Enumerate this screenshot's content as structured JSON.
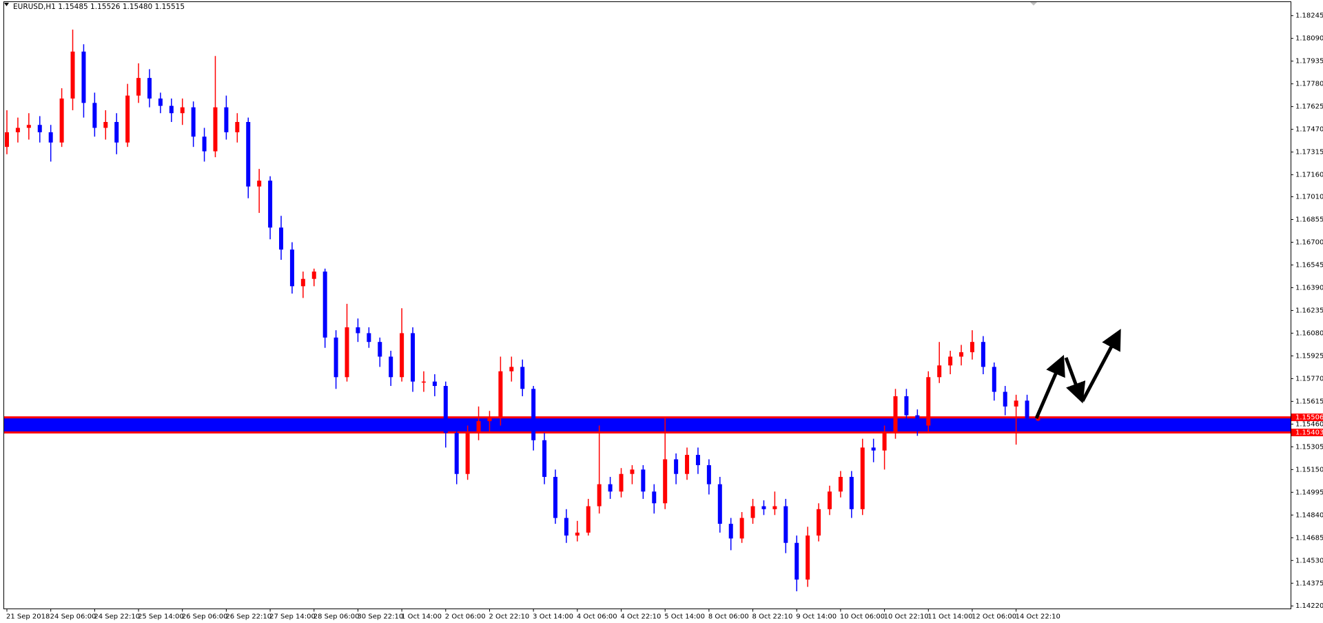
{
  "chart_data": {
    "type": "candlestick",
    "title": "EURUSD,H1  1.15485 1.15526 1.15480 1.15515",
    "categories": [
      "21 Sep 2018",
      null,
      null,
      null,
      "24 Sep 06:00",
      null,
      null,
      null,
      "24 Sep 22:10",
      null,
      null,
      null,
      "25 Sep 14:00",
      null,
      null,
      null,
      "26 Sep 06:00",
      null,
      null,
      null,
      "26 Sep 22:10",
      null,
      null,
      null,
      "27 Sep 14:00",
      null,
      null,
      null,
      "28 Sep 06:00",
      null,
      null,
      null,
      "30 Sep 22:10",
      null,
      null,
      null,
      "1 Oct 14:00",
      null,
      null,
      null,
      "2 Oct 06:00",
      null,
      null,
      null,
      "2 Oct 22:10",
      null,
      null,
      null,
      "3 Oct 14:00",
      null,
      null,
      null,
      "4 Oct 06:00",
      null,
      null,
      null,
      "4 Oct 22:10",
      null,
      null,
      null,
      "5 Oct 14:00",
      null,
      null,
      null,
      "8 Oct 06:00",
      null,
      null,
      null,
      "8 Oct 22:10",
      null,
      null,
      null,
      "9 Oct 14:00",
      null,
      null,
      null,
      "10 Oct 06:00",
      null,
      null,
      null,
      "10 Oct 22:10",
      null,
      null,
      null,
      "11 Oct 14:00",
      null,
      null,
      null,
      "12 Oct 06:00",
      null,
      null,
      null,
      "14 Oct 22:10",
      null,
      null
    ],
    "ohlc": [
      [
        1.1735,
        1.176,
        1.173,
        1.1745
      ],
      [
        1.1745,
        1.1755,
        1.1738,
        1.1748
      ],
      [
        1.1748,
        1.1758,
        1.174,
        1.175
      ],
      [
        1.175,
        1.1756,
        1.1738,
        1.1745
      ],
      [
        1.1745,
        1.175,
        1.1725,
        1.1738
      ],
      [
        1.1738,
        1.1775,
        1.1735,
        1.1768
      ],
      [
        1.1768,
        1.1815,
        1.176,
        1.18
      ],
      [
        1.18,
        1.1805,
        1.1755,
        1.1765
      ],
      [
        1.1765,
        1.1772,
        1.1742,
        1.1748
      ],
      [
        1.1748,
        1.176,
        1.174,
        1.1752
      ],
      [
        1.1752,
        1.1758,
        1.173,
        1.1738
      ],
      [
        1.1738,
        1.1778,
        1.1735,
        1.177
      ],
      [
        1.177,
        1.1792,
        1.1765,
        1.1782
      ],
      [
        1.1782,
        1.1788,
        1.1762,
        1.1768
      ],
      [
        1.1768,
        1.1772,
        1.1758,
        1.1763
      ],
      [
        1.1763,
        1.1768,
        1.1752,
        1.1758
      ],
      [
        1.1758,
        1.1768,
        1.175,
        1.1762
      ],
      [
        1.1762,
        1.1766,
        1.1735,
        1.1742
      ],
      [
        1.1742,
        1.1748,
        1.1725,
        1.1732
      ],
      [
        1.1732,
        1.1797,
        1.1728,
        1.1762
      ],
      [
        1.1762,
        1.177,
        1.174,
        1.1745
      ],
      [
        1.1745,
        1.1758,
        1.1738,
        1.1752
      ],
      [
        1.1752,
        1.1755,
        1.17,
        1.1708
      ],
      [
        1.1708,
        1.172,
        1.169,
        1.1712
      ],
      [
        1.1712,
        1.1715,
        1.1672,
        1.168
      ],
      [
        1.168,
        1.1688,
        1.1658,
        1.1665
      ],
      [
        1.1665,
        1.167,
        1.1635,
        1.164
      ],
      [
        1.164,
        1.165,
        1.1632,
        1.1645
      ],
      [
        1.1645,
        1.1652,
        1.164,
        1.165
      ],
      [
        1.165,
        1.1652,
        1.1598,
        1.1605
      ],
      [
        1.1605,
        1.161,
        1.157,
        1.1578
      ],
      [
        1.1578,
        1.1628,
        1.1575,
        1.1612
      ],
      [
        1.1612,
        1.1618,
        1.1602,
        1.1608
      ],
      [
        1.1608,
        1.1612,
        1.1598,
        1.1602
      ],
      [
        1.1602,
        1.1605,
        1.1585,
        1.1592
      ],
      [
        1.1592,
        1.1596,
        1.1572,
        1.1578
      ],
      [
        1.1578,
        1.1625,
        1.1575,
        1.1608
      ],
      [
        1.1608,
        1.1612,
        1.1568,
        1.1575
      ],
      [
        1.1575,
        1.1582,
        1.1568,
        1.1575
      ],
      [
        1.1575,
        1.158,
        1.1565,
        1.1572
      ],
      [
        1.1572,
        1.1575,
        1.153,
        1.154
      ],
      [
        1.154,
        1.1545,
        1.1505,
        1.1512
      ],
      [
        1.1512,
        1.1545,
        1.1508,
        1.154
      ],
      [
        1.154,
        1.1558,
        1.1535,
        1.1548
      ],
      [
        1.1548,
        1.1555,
        1.154,
        1.155
      ],
      [
        1.155,
        1.1592,
        1.1545,
        1.1582
      ],
      [
        1.1582,
        1.1592,
        1.1575,
        1.1585
      ],
      [
        1.1585,
        1.159,
        1.1565,
        1.157
      ],
      [
        1.157,
        1.1572,
        1.1528,
        1.1535
      ],
      [
        1.1535,
        1.154,
        1.1505,
        1.151
      ],
      [
        1.151,
        1.1515,
        1.1478,
        1.1482
      ],
      [
        1.1482,
        1.1488,
        1.1465,
        1.147
      ],
      [
        1.147,
        1.148,
        1.1466,
        1.1472
      ],
      [
        1.1472,
        1.1495,
        1.147,
        1.149
      ],
      [
        1.149,
        1.1545,
        1.1485,
        1.1505
      ],
      [
        1.1505,
        1.151,
        1.1495,
        1.15
      ],
      [
        1.15,
        1.1516,
        1.1496,
        1.1512
      ],
      [
        1.1512,
        1.1518,
        1.1505,
        1.1515
      ],
      [
        1.1515,
        1.1518,
        1.1495,
        1.15
      ],
      [
        1.15,
        1.1505,
        1.1485,
        1.1492
      ],
      [
        1.1492,
        1.155,
        1.1488,
        1.1522
      ],
      [
        1.1522,
        1.1526,
        1.1505,
        1.1512
      ],
      [
        1.1512,
        1.153,
        1.1508,
        1.1525
      ],
      [
        1.1525,
        1.153,
        1.1512,
        1.1518
      ],
      [
        1.1518,
        1.1522,
        1.1498,
        1.1505
      ],
      [
        1.1505,
        1.151,
        1.1472,
        1.1478
      ],
      [
        1.1478,
        1.1482,
        1.146,
        1.1468
      ],
      [
        1.1468,
        1.1486,
        1.1465,
        1.1482
      ],
      [
        1.1482,
        1.1495,
        1.1478,
        1.149
      ],
      [
        1.149,
        1.1494,
        1.1484,
        1.1488
      ],
      [
        1.1488,
        1.15,
        1.1484,
        1.149
      ],
      [
        1.149,
        1.1495,
        1.1458,
        1.1465
      ],
      [
        1.1465,
        1.147,
        1.1432,
        1.144
      ],
      [
        1.144,
        1.1476,
        1.1435,
        1.147
      ],
      [
        1.147,
        1.1492,
        1.1466,
        1.1488
      ],
      [
        1.1488,
        1.1504,
        1.1484,
        1.15
      ],
      [
        1.15,
        1.1514,
        1.1496,
        1.151
      ],
      [
        1.151,
        1.1514,
        1.1482,
        1.1488
      ],
      [
        1.1488,
        1.1536,
        1.1484,
        1.153
      ],
      [
        1.153,
        1.1536,
        1.152,
        1.1528
      ],
      [
        1.1528,
        1.1545,
        1.1515,
        1.154
      ],
      [
        1.154,
        1.157,
        1.1536,
        1.1565
      ],
      [
        1.1565,
        1.157,
        1.1548,
        1.1552
      ],
      [
        1.1552,
        1.1556,
        1.1538,
        1.1545
      ],
      [
        1.1545,
        1.1582,
        1.154,
        1.1578
      ],
      [
        1.1578,
        1.1602,
        1.1574,
        1.1586
      ],
      [
        1.1586,
        1.1596,
        1.158,
        1.1592
      ],
      [
        1.1592,
        1.16,
        1.1586,
        1.1595
      ],
      [
        1.1595,
        1.161,
        1.159,
        1.1602
      ],
      [
        1.1602,
        1.1606,
        1.158,
        1.1585
      ],
      [
        1.1585,
        1.1588,
        1.1562,
        1.1568
      ],
      [
        1.1568,
        1.1572,
        1.1552,
        1.1558
      ],
      [
        1.1558,
        1.1566,
        1.1532,
        1.1562
      ],
      [
        1.1562,
        1.1566,
        1.1545,
        1.155
      ],
      [
        1.15485,
        1.15526,
        1.1548,
        1.15515
      ]
    ],
    "up_color": "#ff0000",
    "down_color": "#0000ff",
    "ylim": [
      1.142,
      1.1834
    ],
    "yticks": [
      1.18245,
      {
        "value": 1.1809,
        "label": "1.18090"
      },
      1.17935,
      {
        "value": 1.1778,
        "label": "1.17780"
      },
      1.17625,
      {
        "value": 1.1747,
        "label": "1.17470"
      },
      1.17315,
      {
        "value": 1.1716,
        "label": "1.17160"
      },
      {
        "value": 1.1701,
        "label": "1.17010"
      },
      1.16855,
      {
        "value": 1.167,
        "label": "1.16700"
      },
      1.16545,
      {
        "value": 1.1639,
        "label": "1.16390"
      },
      1.16235,
      {
        "value": 1.1608,
        "label": "1.16080"
      },
      1.15925,
      {
        "value": 1.1577,
        "label": "1.15770"
      },
      1.15615,
      {
        "value": 1.1546,
        "label": "1.15460"
      },
      1.15305,
      {
        "value": 1.1515,
        "label": "1.15150"
      },
      1.14995,
      {
        "value": 1.1484,
        "label": "1.14840"
      },
      1.14685,
      {
        "value": 1.1453,
        "label": "1.14530"
      },
      1.14375,
      {
        "value": 1.1422,
        "label": "1.14220"
      }
    ],
    "levels": [
      1.15506,
      1.15403
    ],
    "level_color": "#ff0000",
    "zone_color": "#0000ff"
  }
}
